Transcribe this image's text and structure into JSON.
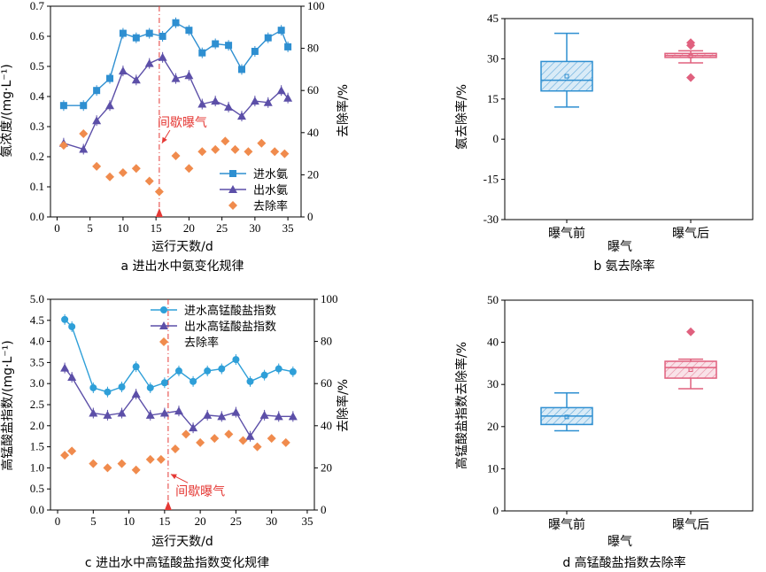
{
  "panels": [
    {
      "id": "a",
      "caption": "a 进出水中氨变化规律",
      "chart_data": {
        "type": "line",
        "xlabel": "运行天数/d",
        "ylabel": "氨浓度/(mg·L⁻¹)",
        "y2label": "去除率/%",
        "xlim": [
          -1,
          37
        ],
        "ylim": [
          0,
          0.7
        ],
        "y2lim": [
          0,
          100
        ],
        "xticks": [
          0,
          5,
          10,
          15,
          20,
          25,
          30,
          35
        ],
        "yticks": [
          0,
          0.1,
          0.2,
          0.3,
          0.4,
          0.5,
          0.6,
          0.7
        ],
        "y2ticks": [
          0,
          20,
          40,
          60,
          80,
          100
        ],
        "event": {
          "x": 15.5,
          "label": "间歇曝气",
          "label_x": 19,
          "label_y": 0.3,
          "arrow_to_y": 0.245
        },
        "series": [
          {
            "name": "进水氨",
            "marker": "square",
            "color": "#2E8FD1",
            "axis": "left",
            "x": [
              1,
              4,
              6,
              8,
              10,
              12,
              14,
              16,
              18,
              20,
              22,
              24,
              26,
              28,
              30,
              32,
              34,
              35
            ],
            "y": [
              0.37,
              0.37,
              0.42,
              0.46,
              0.61,
              0.595,
              0.61,
              0.6,
              0.645,
              0.62,
              0.545,
              0.575,
              0.57,
              0.49,
              0.55,
              0.595,
              0.62,
              0.565
            ]
          },
          {
            "name": "出水氨",
            "marker": "triangle",
            "color": "#5C4FA8",
            "axis": "left",
            "x": [
              1,
              4,
              6,
              8,
              10,
              12,
              14,
              16,
              18,
              20,
              22,
              24,
              26,
              28,
              30,
              32,
              34,
              35
            ],
            "y": [
              0.245,
              0.225,
              0.32,
              0.37,
              0.485,
              0.455,
              0.51,
              0.53,
              0.46,
              0.47,
              0.375,
              0.385,
              0.365,
              0.335,
              0.385,
              0.38,
              0.42,
              0.395
            ]
          },
          {
            "name": "去除率",
            "marker": "diamond",
            "color": "#F08B4D",
            "axis": "right",
            "connected": false,
            "x": [
              1,
              4,
              6,
              8,
              10,
              12,
              14,
              15.5,
              18,
              20,
              22,
              24,
              25.5,
              27,
              29,
              31,
              33,
              34.5
            ],
            "y": [
              34,
              39.5,
              24,
              19,
              21,
              23,
              17,
              12,
              29,
              23,
              31,
              32,
              36,
              32,
              31,
              35,
              31,
              30
            ]
          }
        ]
      }
    },
    {
      "id": "b",
      "caption": "b 氨去除率",
      "chart_data": {
        "type": "box",
        "xlabel": "曝气",
        "ylabel": "氨去除率/%",
        "ylim": [
          -30,
          45
        ],
        "yticks": [
          -30,
          -15,
          0,
          15,
          30,
          45
        ],
        "categories": [
          "曝气前",
          "曝气后"
        ],
        "boxes": [
          {
            "name": "曝气前",
            "color": "#2E8FD1",
            "min": 12,
            "q1": 18,
            "median": 22,
            "q3": 29,
            "max": 39.5,
            "mean": 23.5,
            "outliers": []
          },
          {
            "name": "曝气后",
            "color": "#E0607E",
            "min": 28.5,
            "q1": 30.5,
            "median": 31.2,
            "q3": 32,
            "max": 33,
            "mean": 31,
            "outliers": [
              35,
              36,
              23
            ]
          }
        ]
      }
    },
    {
      "id": "c",
      "caption": "c 进出水中高锰酸盐指数变化规律",
      "chart_data": {
        "type": "line",
        "xlabel": "运行天数/d",
        "ylabel": "高锰酸盐指数/(mg·L⁻¹)",
        "y2label": "去除率/%",
        "xlim": [
          -1,
          36
        ],
        "ylim": [
          0,
          5.0
        ],
        "y2lim": [
          0,
          100
        ],
        "xticks": [
          0,
          5,
          10,
          15,
          20,
          25,
          30,
          35
        ],
        "yticks": [
          0,
          0.5,
          1.0,
          1.5,
          2.0,
          2.5,
          3.0,
          3.5,
          4.0,
          4.5,
          5.0
        ],
        "y2ticks": [
          0,
          20,
          40,
          60,
          80,
          100
        ],
        "event": {
          "x": 15.5,
          "label": "间歇曝气",
          "label_x": 20,
          "label_y": 0.35,
          "arrow_to_y": 0.85
        },
        "series": [
          {
            "name": "进水高锰酸盐指数",
            "marker": "circle",
            "color": "#2E9FD8",
            "axis": "left",
            "x": [
              1,
              2,
              5,
              7,
              9,
              11,
              13,
              15,
              17,
              19,
              21,
              23,
              25,
              27,
              29,
              31,
              33
            ],
            "y": [
              4.52,
              4.35,
              2.9,
              2.8,
              2.92,
              3.4,
              2.9,
              3.02,
              3.3,
              3.05,
              3.3,
              3.35,
              3.57,
              3.05,
              3.2,
              3.35,
              3.28
            ]
          },
          {
            "name": "出水高锰酸盐指数",
            "marker": "triangle",
            "color": "#5C4FA8",
            "axis": "left",
            "x": [
              1,
              2,
              5,
              7,
              9,
              11,
              13,
              15,
              17,
              19,
              21,
              23,
              25,
              27,
              29,
              31,
              33
            ],
            "y": [
              3.37,
              3.15,
              2.3,
              2.25,
              2.3,
              2.75,
              2.25,
              2.3,
              2.35,
              1.95,
              2.25,
              2.22,
              2.32,
              1.75,
              2.25,
              2.22,
              2.22
            ]
          },
          {
            "name": "去除率",
            "marker": "diamond",
            "color": "#F08B4D",
            "axis": "right",
            "connected": false,
            "x": [
              1,
              2,
              5,
              7,
              9,
              11,
              13,
              14.5,
              16.5,
              18,
              20,
              22,
              24,
              26,
              28,
              30,
              32
            ],
            "y": [
              26,
              28,
              22,
              20,
              22,
              19,
              24,
              24,
              29,
              36,
              32,
              34,
              36,
              33,
              30,
              34,
              32
            ]
          }
        ]
      }
    },
    {
      "id": "d",
      "caption": "d 高锰酸盐指数去除率",
      "chart_data": {
        "type": "box",
        "xlabel": "曝气",
        "ylabel": "高锰酸盐指数去除率/%",
        "ylim": [
          0,
          50
        ],
        "yticks": [
          0,
          10,
          20,
          30,
          40,
          50
        ],
        "categories": [
          "曝气前",
          "曝气后"
        ],
        "boxes": [
          {
            "name": "曝气前",
            "color": "#2E8FD1",
            "min": 19,
            "q1": 20.5,
            "median": 22.5,
            "q3": 24.5,
            "max": 28,
            "mean": 22.3,
            "outliers": []
          },
          {
            "name": "曝气后",
            "color": "#E0607E",
            "min": 29,
            "q1": 31.5,
            "median": 34,
            "q3": 35.5,
            "max": 36,
            "mean": 33.5,
            "outliers": [
              42.5
            ]
          }
        ]
      }
    }
  ]
}
